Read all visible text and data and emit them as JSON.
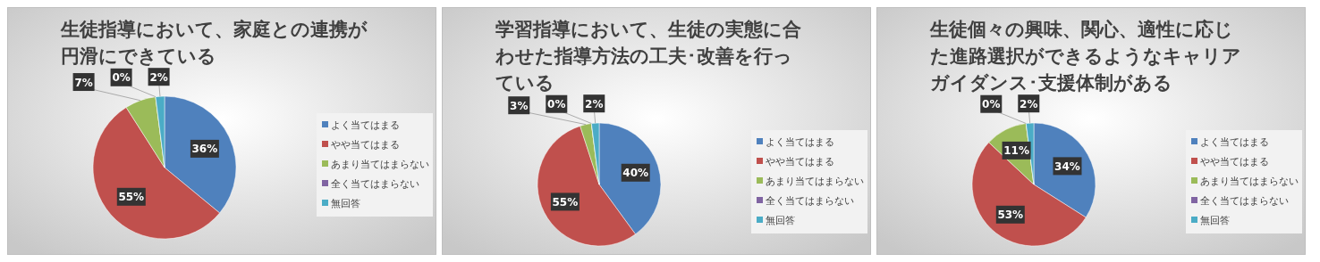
{
  "chart_data": [
    {
      "type": "pie",
      "title": "生徒指導において、家庭との連携が円滑にできている",
      "categories": [
        "よく当てはまる",
        "やや当てはまる",
        "あまり当てはまらない",
        "全く当てはまらない",
        "無回答"
      ],
      "values": [
        36,
        55,
        7,
        0,
        2
      ],
      "value_labels": [
        "36%",
        "55%",
        "7%",
        "0%",
        "2%"
      ],
      "colors": [
        "#4f81bd",
        "#c0504d",
        "#9bbb59",
        "#8064a2",
        "#4bacc6"
      ],
      "legend": "right"
    },
    {
      "type": "pie",
      "title": "学習指導において、生徒の実態に合わせた指導方法の工夫･改善を行っている",
      "categories": [
        "よく当てはまる",
        "やや当てはまる",
        "あまり当てはまらない",
        "全く当てはまらない",
        "無回答"
      ],
      "values": [
        40,
        55,
        3,
        0,
        2
      ],
      "value_labels": [
        "40%",
        "55%",
        "3%",
        "0%",
        "2%"
      ],
      "colors": [
        "#4f81bd",
        "#c0504d",
        "#9bbb59",
        "#8064a2",
        "#4bacc6"
      ],
      "legend": "right"
    },
    {
      "type": "pie",
      "title": "生徒個々の興味、関心、適性に応じた進路選択ができるようなキャリアガイダンス･支援体制がある",
      "categories": [
        "よく当てはまる",
        "やや当てはまる",
        "あまり当てはまらない",
        "全く当てはまらない",
        "無回答"
      ],
      "values": [
        34,
        53,
        11,
        0,
        2
      ],
      "value_labels": [
        "34%",
        "53%",
        "11%",
        "0%",
        "2%"
      ],
      "colors": [
        "#4f81bd",
        "#c0504d",
        "#9bbb59",
        "#8064a2",
        "#4bacc6"
      ],
      "legend": "right"
    }
  ]
}
